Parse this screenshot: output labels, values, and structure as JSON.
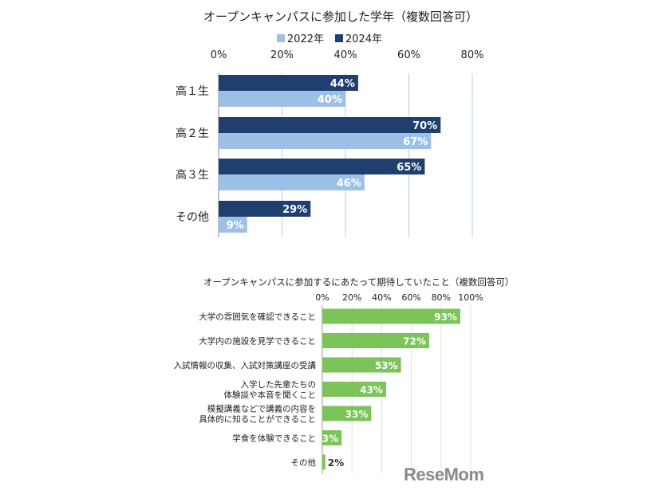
{
  "chart_data": [
    {
      "type": "bar",
      "orientation": "horizontal",
      "title": "オープンキャンパスに参加した学年（複数回答可）",
      "categories": [
        "高１生",
        "高２生",
        "高３生",
        "その他"
      ],
      "series": [
        {
          "name": "2024年",
          "values": [
            44,
            70,
            65,
            29
          ],
          "color": "#1f3f6e"
        },
        {
          "name": "2022年",
          "values": [
            40,
            67,
            46,
            9
          ],
          "color": "#9dc0e6"
        }
      ],
      "xlim": [
        0,
        80
      ],
      "ticks": [
        "0%",
        "20%",
        "40%",
        "60%",
        "80%"
      ],
      "grid": true,
      "legend": "top"
    },
    {
      "type": "bar",
      "orientation": "horizontal",
      "title": "オープンキャンパスに参加するにあたって期待していたこと（複数回答可）",
      "categories": [
        [
          "大学の雰囲気を確認できること"
        ],
        [
          "大学内の施設を見学できること"
        ],
        [
          "入試情報の収集、入試対策講座の受講"
        ],
        [
          "入学した先輩たちの",
          "体験談や本音を聞くこと"
        ],
        [
          "模擬講義などで講義の内容を",
          "具体的に知ることができること"
        ],
        [
          "学食を体験できること"
        ],
        [
          "その他"
        ]
      ],
      "series": [
        {
          "name": "",
          "values": [
            93,
            72,
            53,
            43,
            33,
            13,
            2
          ],
          "color": "#7cc45a"
        }
      ],
      "xlim": [
        0,
        100
      ],
      "ticks": [
        "0%",
        "20%",
        "40%",
        "60%",
        "80%",
        "100%"
      ],
      "grid": true
    }
  ],
  "watermark": "ReseMom"
}
